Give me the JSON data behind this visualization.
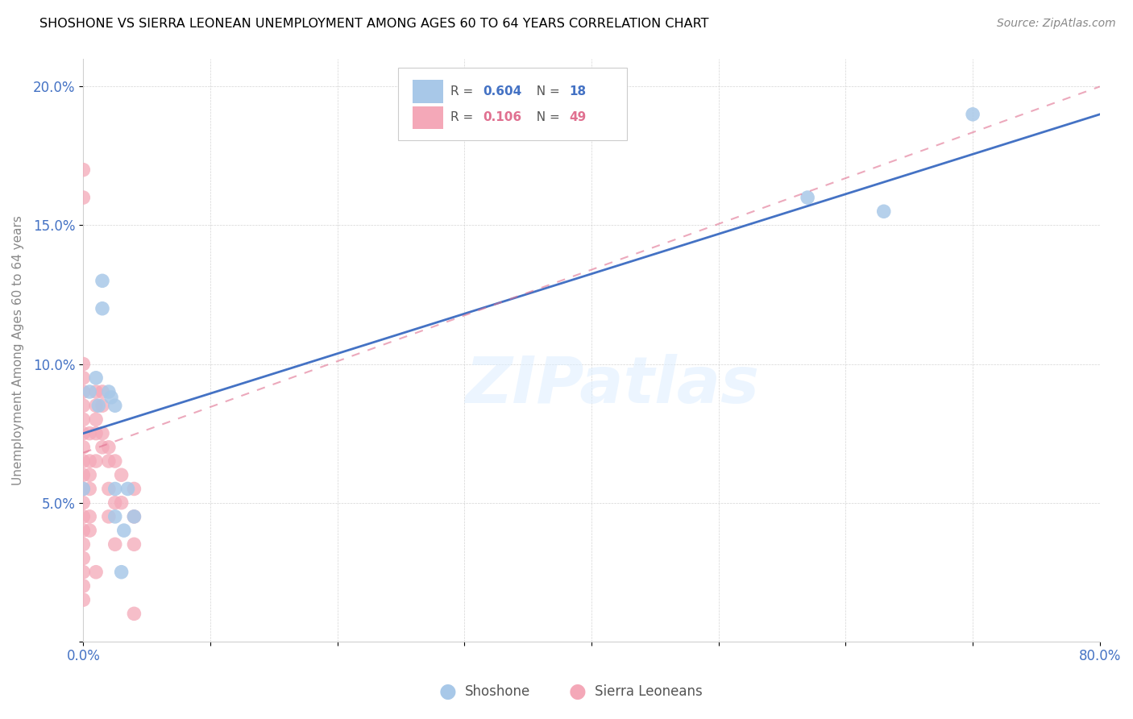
{
  "title": "SHOSHONE VS SIERRA LEONEAN UNEMPLOYMENT AMONG AGES 60 TO 64 YEARS CORRELATION CHART",
  "source": "Source: ZipAtlas.com",
  "ylabel": "Unemployment Among Ages 60 to 64 years",
  "xlabel": "",
  "xlim": [
    0,
    0.8
  ],
  "ylim": [
    0,
    0.21
  ],
  "xticks": [
    0.0,
    0.1,
    0.2,
    0.3,
    0.4,
    0.5,
    0.6,
    0.7,
    0.8
  ],
  "xticklabels": [
    "0.0%",
    "",
    "",
    "",
    "",
    "",
    "",
    "",
    "80.0%"
  ],
  "yticks": [
    0.0,
    0.05,
    0.1,
    0.15,
    0.2
  ],
  "yticklabels": [
    "",
    "5.0%",
    "10.0%",
    "15.0%",
    "20.0%"
  ],
  "shoshone_color": "#a8c8e8",
  "sierra_color": "#f4a8b8",
  "shoshone_line_color": "#4472c4",
  "sierra_line_color": "#e07090",
  "legend_R_shoshone": "0.604",
  "legend_N_shoshone": "18",
  "legend_R_sierra": "0.106",
  "legend_N_sierra": "49",
  "watermark": "ZIPatlas",
  "shoshone_x": [
    0.0,
    0.005,
    0.01,
    0.012,
    0.015,
    0.015,
    0.02,
    0.022,
    0.025,
    0.025,
    0.025,
    0.03,
    0.032,
    0.035,
    0.04,
    0.57,
    0.63,
    0.7
  ],
  "shoshone_y": [
    0.055,
    0.09,
    0.095,
    0.085,
    0.13,
    0.12,
    0.09,
    0.088,
    0.085,
    0.055,
    0.045,
    0.025,
    0.04,
    0.055,
    0.045,
    0.16,
    0.155,
    0.19
  ],
  "sierra_x": [
    0.0,
    0.0,
    0.0,
    0.0,
    0.0,
    0.0,
    0.0,
    0.0,
    0.0,
    0.0,
    0.0,
    0.0,
    0.0,
    0.0,
    0.0,
    0.0,
    0.0,
    0.0,
    0.0,
    0.0,
    0.005,
    0.005,
    0.005,
    0.005,
    0.005,
    0.005,
    0.01,
    0.01,
    0.01,
    0.01,
    0.01,
    0.01,
    0.015,
    0.015,
    0.015,
    0.015,
    0.02,
    0.02,
    0.02,
    0.02,
    0.025,
    0.025,
    0.025,
    0.03,
    0.03,
    0.04,
    0.04,
    0.04,
    0.04
  ],
  "sierra_y": [
    0.17,
    0.16,
    0.1,
    0.095,
    0.09,
    0.085,
    0.08,
    0.075,
    0.07,
    0.065,
    0.06,
    0.055,
    0.05,
    0.045,
    0.04,
    0.035,
    0.03,
    0.025,
    0.02,
    0.015,
    0.075,
    0.065,
    0.06,
    0.055,
    0.045,
    0.04,
    0.09,
    0.085,
    0.08,
    0.075,
    0.065,
    0.025,
    0.09,
    0.085,
    0.075,
    0.07,
    0.065,
    0.055,
    0.045,
    0.07,
    0.065,
    0.05,
    0.035,
    0.06,
    0.05,
    0.055,
    0.045,
    0.035,
    0.01
  ],
  "shoshone_line_x0": 0.0,
  "shoshone_line_y0": 0.075,
  "shoshone_line_x1": 0.8,
  "shoshone_line_y1": 0.19,
  "sierra_line_x0": 0.0,
  "sierra_line_y0": 0.068,
  "sierra_line_x1": 0.8,
  "sierra_line_y1": 0.2
}
